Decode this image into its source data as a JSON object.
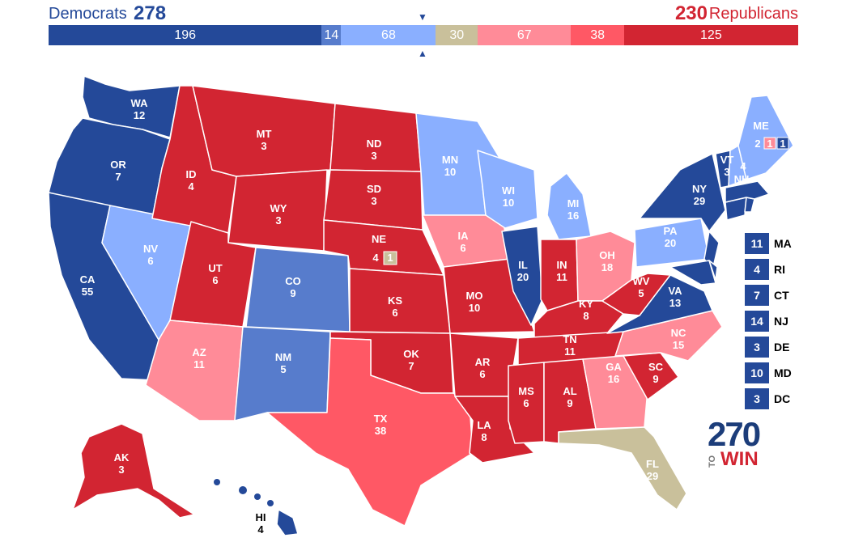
{
  "header": {
    "dem_label": "Democrats",
    "dem_total": "278",
    "rep_total": "230",
    "rep_label": "Republicans"
  },
  "colors": {
    "safe_d": "#244999",
    "likely_d": "#577ccc",
    "lean_d": "#8aafff",
    "tossup": "#c9c09b",
    "lean_r": "#ff8b98",
    "likely_r": "#ff5865",
    "safe_r": "#d22532"
  },
  "bar": [
    {
      "value": "196",
      "color": "#244999",
      "width": 196
    },
    {
      "value": "14",
      "color": "#577ccc",
      "width": 14
    },
    {
      "value": "68",
      "color": "#8aafff",
      "width": 68
    },
    {
      "value": "30",
      "color": "#c9c09b",
      "width": 30
    },
    {
      "value": "67",
      "color": "#ff8b98",
      "width": 67
    },
    {
      "value": "38",
      "color": "#ff5865",
      "width": 38
    },
    {
      "value": "125",
      "color": "#d22532",
      "width": 125
    }
  ],
  "markers": {
    "top": "▼",
    "bottom": "▲"
  },
  "states": {
    "WA": {
      "abbr": "WA",
      "ev": "12"
    },
    "OR": {
      "abbr": "OR",
      "ev": "7"
    },
    "CA": {
      "abbr": "CA",
      "ev": "55"
    },
    "NV": {
      "abbr": "NV",
      "ev": "6"
    },
    "ID": {
      "abbr": "ID",
      "ev": "4"
    },
    "MT": {
      "abbr": "MT",
      "ev": "3"
    },
    "WY": {
      "abbr": "WY",
      "ev": "3"
    },
    "UT": {
      "abbr": "UT",
      "ev": "6"
    },
    "AZ": {
      "abbr": "AZ",
      "ev": "11"
    },
    "CO": {
      "abbr": "CO",
      "ev": "9"
    },
    "NM": {
      "abbr": "NM",
      "ev": "5"
    },
    "ND": {
      "abbr": "ND",
      "ev": "3"
    },
    "SD": {
      "abbr": "SD",
      "ev": "3"
    },
    "NE": {
      "abbr": "NE",
      "ev": "4"
    },
    "NE2": {
      "ev": "1"
    },
    "KS": {
      "abbr": "KS",
      "ev": "6"
    },
    "OK": {
      "abbr": "OK",
      "ev": "7"
    },
    "TX": {
      "abbr": "TX",
      "ev": "38"
    },
    "MN": {
      "abbr": "MN",
      "ev": "10"
    },
    "IA": {
      "abbr": "IA",
      "ev": "6"
    },
    "MO": {
      "abbr": "MO",
      "ev": "10"
    },
    "AR": {
      "abbr": "AR",
      "ev": "6"
    },
    "LA": {
      "abbr": "LA",
      "ev": "8"
    },
    "WI": {
      "abbr": "WI",
      "ev": "10"
    },
    "IL": {
      "abbr": "IL",
      "ev": "20"
    },
    "MI": {
      "abbr": "MI",
      "ev": "16"
    },
    "IN": {
      "abbr": "IN",
      "ev": "11"
    },
    "OH": {
      "abbr": "OH",
      "ev": "18"
    },
    "KY": {
      "abbr": "KY",
      "ev": "8"
    },
    "TN": {
      "abbr": "TN",
      "ev": "11"
    },
    "MS": {
      "abbr": "MS",
      "ev": "6"
    },
    "AL": {
      "abbr": "AL",
      "ev": "9"
    },
    "GA": {
      "abbr": "GA",
      "ev": "16"
    },
    "FL": {
      "abbr": "FL",
      "ev": "29"
    },
    "SC": {
      "abbr": "SC",
      "ev": "9"
    },
    "NC": {
      "abbr": "NC",
      "ev": "15"
    },
    "VA": {
      "abbr": "VA",
      "ev": "13"
    },
    "WV": {
      "abbr": "WV",
      "ev": "5"
    },
    "PA": {
      "abbr": "PA",
      "ev": "20"
    },
    "NY": {
      "abbr": "NY",
      "ev": "29"
    },
    "VT": {
      "abbr": "VT",
      "ev": "3"
    },
    "NH": {
      "abbr": "NH",
      "ev": "4"
    },
    "ME": {
      "abbr": "ME",
      "ev": "2"
    },
    "ME2": {
      "ev": "1"
    },
    "ME1": {
      "ev": "1"
    },
    "AK": {
      "abbr": "AK",
      "ev": "3"
    },
    "HI": {
      "abbr": "HI",
      "ev": "4"
    }
  },
  "small_states": [
    {
      "ev": "11",
      "name": "MA"
    },
    {
      "ev": "4",
      "name": "RI"
    },
    {
      "ev": "7",
      "name": "CT"
    },
    {
      "ev": "14",
      "name": "NJ"
    },
    {
      "ev": "3",
      "name": "DE"
    },
    {
      "ev": "10",
      "name": "MD"
    },
    {
      "ev": "3",
      "name": "DC"
    }
  ],
  "logo": {
    "number": "270",
    "to": "TO",
    "win": "WIN"
  }
}
